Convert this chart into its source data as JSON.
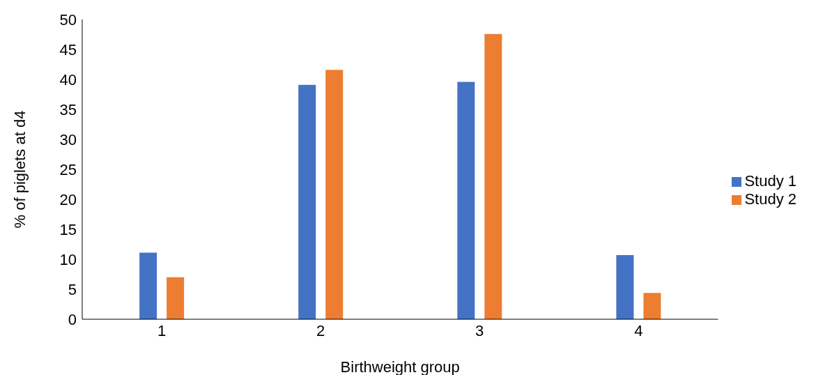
{
  "chart_data": {
    "type": "bar",
    "xlabel": "Birthweight group",
    "ylabel": "% of piglets at d4",
    "categories": [
      "1",
      "2",
      "3",
      "4"
    ],
    "series": [
      {
        "name": "Study 1",
        "color": "#4472c4",
        "values": [
          11.1,
          39.1,
          39.6,
          10.7
        ]
      },
      {
        "name": "Study 2",
        "color": "#ed7d31",
        "values": [
          7.0,
          41.6,
          47.6,
          4.4
        ]
      }
    ],
    "ylim": [
      0,
      50
    ],
    "yticks": [
      0,
      5,
      10,
      15,
      20,
      25,
      30,
      35,
      40,
      45,
      50
    ],
    "grid": false,
    "legend": "right"
  }
}
